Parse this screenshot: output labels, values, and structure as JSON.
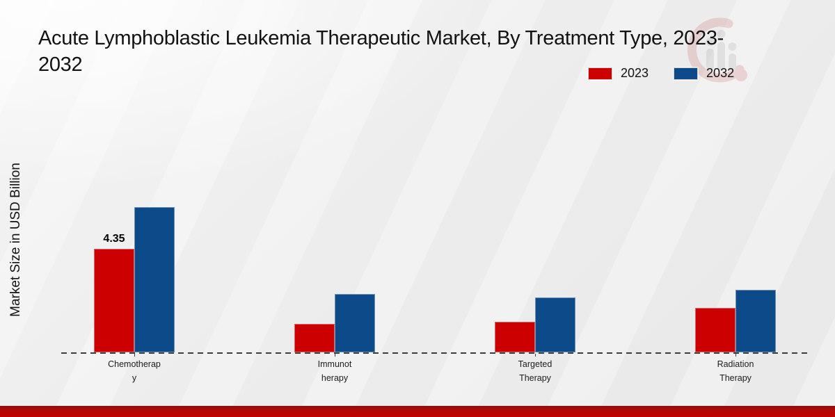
{
  "title_lines": [
    "Acute Lymphoblastic Leukemia Therapeutic Market, By Treatment Type, 2023-",
    "2032"
  ],
  "y_axis_label": "Market Size in USD Billion",
  "watermark_icon": "brand-logo-watermark",
  "brand_colors": {
    "red": "#cc0000",
    "blue": "#0c4a8a",
    "footer_red": "#c10000"
  },
  "chart_data": {
    "type": "bar",
    "title": "Acute Lymphoblastic Leukemia Therapeutic Market, By Treatment Type, 2023-2032",
    "categories": [
      "Chemotherapy",
      "Immunotherapy",
      "Targeted Therapy",
      "Radiation Therapy"
    ],
    "category_display_lines": [
      [
        "Chemotherap",
        "y"
      ],
      [
        "Immunot",
        "herapy"
      ],
      [
        "Targeted",
        "Therapy"
      ],
      [
        "Radiation",
        "Therapy"
      ]
    ],
    "series": [
      {
        "name": "2023",
        "color": "#cc0000",
        "values": [
          4.35,
          1.2,
          1.28,
          1.88
        ]
      },
      {
        "name": "2032",
        "color": "#0c4a8a",
        "values": [
          6.1,
          2.45,
          2.31,
          2.64
        ]
      }
    ],
    "bar_label": {
      "series": "2023",
      "category": "Chemotherapy",
      "text": "4.35"
    },
    "xlabel": "",
    "ylabel": "Market Size in USD Billion",
    "ylim": [
      0,
      7
    ],
    "grid": false,
    "baseline_style": "dashed",
    "legend_position": "top-right"
  }
}
